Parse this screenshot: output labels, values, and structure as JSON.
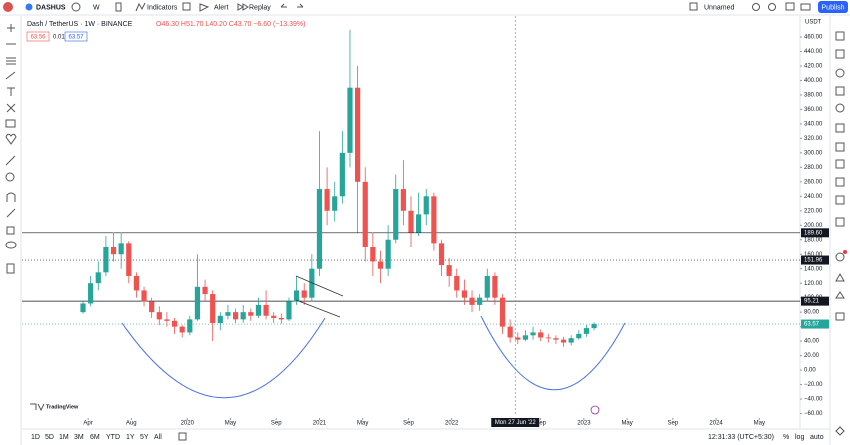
{
  "header": {
    "symbol": "DASHUS",
    "interval": "W",
    "buttons": [
      "Indicators",
      "Alert",
      "Replay"
    ],
    "layout_name": "Unnamed",
    "publish": "Publish"
  },
  "legend": {
    "title": "Dash / TetherUS · 1W · BINANCE",
    "ohlc": "O46.30 H51.70 L40.20 C43.70 −6.60 (−13.39%)",
    "bid": "63.56",
    "spread": "0.01",
    "ask": "63.57"
  },
  "chart_data": {
    "type": "candlestick",
    "currency": "USDT",
    "watermark": "TradingView",
    "up_color": "#26a69a",
    "down_color": "#ef5350",
    "xlim": [
      -13,
      293
    ],
    "ylim": [
      -80,
      489
    ],
    "xticks": [
      {
        "value": 13,
        "label": "Apr"
      },
      {
        "value": 30,
        "label": "Aug"
      },
      {
        "value": 52,
        "label": "2020"
      },
      {
        "value": 69,
        "label": "May"
      },
      {
        "value": 87,
        "label": "Sep"
      },
      {
        "value": 104,
        "label": "2021"
      },
      {
        "value": 121,
        "label": "May"
      },
      {
        "value": 139,
        "label": "Sep"
      },
      {
        "value": 156,
        "label": "2022"
      },
      {
        "value": 191,
        "label": "Sep"
      },
      {
        "value": 208,
        "label": "2023"
      },
      {
        "value": 225,
        "label": "May"
      },
      {
        "value": 243,
        "label": "Sep"
      },
      {
        "value": 260,
        "label": "2024"
      },
      {
        "value": 277,
        "label": "May"
      }
    ],
    "yticks": [
      {
        "value": -60,
        "label": "−60.00"
      },
      {
        "value": -40,
        "label": "−40.00"
      },
      {
        "value": -20,
        "label": "−20.00"
      },
      {
        "value": 0,
        "label": "0.00"
      },
      {
        "value": 20,
        "label": "20.00"
      },
      {
        "value": 40,
        "label": "40.00"
      },
      {
        "value": 60,
        "label": "60.00"
      },
      {
        "value": 80,
        "label": "80.00"
      },
      {
        "value": 100,
        "label": "100.00"
      },
      {
        "value": 120,
        "label": "120.00"
      },
      {
        "value": 140,
        "label": "140.00"
      },
      {
        "value": 160,
        "label": "160.00"
      },
      {
        "value": 180,
        "label": "180.00"
      },
      {
        "value": 200,
        "label": "200.00"
      },
      {
        "value": 220,
        "label": "220.00"
      },
      {
        "value": 240,
        "label": "240.00"
      },
      {
        "value": 260,
        "label": "260.00"
      },
      {
        "value": 280,
        "label": "280.00"
      },
      {
        "value": 300,
        "label": "300.00"
      },
      {
        "value": 320,
        "label": "320.00"
      },
      {
        "value": 340,
        "label": "340.00"
      },
      {
        "value": 360,
        "label": "360.00"
      },
      {
        "value": 380,
        "label": "380.00"
      },
      {
        "value": 400,
        "label": "400.00"
      },
      {
        "value": 420,
        "label": "420.00"
      },
      {
        "value": 440,
        "label": "440.00"
      },
      {
        "value": 460,
        "label": "460.00"
      }
    ],
    "price_lines": [
      {
        "value": 189.6,
        "label": "189.60",
        "color": "#131722"
      },
      {
        "value": 151.96,
        "label": "151.96",
        "color": "#131722"
      },
      {
        "value": 95.21,
        "label": "95.21",
        "color": "#131722"
      },
      {
        "value": 63.57,
        "label": "63.57",
        "color": "#26a69a"
      }
    ],
    "crosshair": {
      "value": 181,
      "label": "Mon 27 Jun '22"
    },
    "weeks": [
      11,
      14,
      17,
      20,
      23,
      26,
      29,
      32,
      35,
      38,
      41,
      44,
      47,
      50,
      53,
      56,
      59,
      62,
      65,
      68,
      71,
      74,
      77,
      80,
      83,
      86,
      89,
      92,
      95,
      98,
      101,
      104,
      107,
      110,
      113,
      116,
      119,
      122,
      125,
      128,
      131,
      134,
      137,
      140,
      143,
      146,
      149,
      152,
      155,
      158,
      161,
      164,
      167,
      170,
      173,
      176,
      179,
      182,
      185,
      188,
      191,
      194,
      197,
      200,
      203,
      206,
      209,
      212
    ],
    "ohlc": [
      [
        80,
        95,
        78,
        92
      ],
      [
        92,
        130,
        88,
        120
      ],
      [
        120,
        150,
        110,
        135
      ],
      [
        135,
        185,
        130,
        170
      ],
      [
        170,
        190,
        150,
        160
      ],
      [
        160,
        190,
        140,
        175
      ],
      [
        175,
        178,
        120,
        130
      ],
      [
        130,
        135,
        100,
        110
      ],
      [
        110,
        115,
        88,
        95
      ],
      [
        95,
        100,
        72,
        80
      ],
      [
        80,
        88,
        62,
        70
      ],
      [
        70,
        80,
        60,
        68
      ],
      [
        68,
        72,
        50,
        60
      ],
      [
        60,
        62,
        45,
        52
      ],
      [
        52,
        75,
        48,
        70
      ],
      [
        70,
        160,
        68,
        115
      ],
      [
        115,
        125,
        95,
        105
      ],
      [
        105,
        110,
        40,
        65
      ],
      [
        65,
        80,
        55,
        75
      ],
      [
        75,
        90,
        70,
        80
      ],
      [
        80,
        85,
        65,
        70
      ],
      [
        70,
        90,
        65,
        80
      ],
      [
        80,
        85,
        68,
        75
      ],
      [
        75,
        100,
        72,
        90
      ],
      [
        90,
        110,
        70,
        75
      ],
      [
        75,
        80,
        65,
        72
      ],
      [
        72,
        78,
        64,
        70
      ],
      [
        70,
        100,
        68,
        95
      ],
      [
        95,
        130,
        90,
        110
      ],
      [
        110,
        120,
        90,
        100
      ],
      [
        100,
        160,
        95,
        140
      ],
      [
        140,
        330,
        130,
        250
      ],
      [
        250,
        280,
        200,
        220
      ],
      [
        220,
        260,
        205,
        240
      ],
      [
        240,
        330,
        230,
        300
      ],
      [
        300,
        470,
        280,
        390
      ],
      [
        390,
        420,
        190,
        260
      ],
      [
        260,
        280,
        150,
        170
      ],
      [
        170,
        190,
        130,
        150
      ],
      [
        150,
        165,
        120,
        140
      ],
      [
        140,
        200,
        130,
        180
      ],
      [
        180,
        270,
        175,
        250
      ],
      [
        250,
        290,
        200,
        220
      ],
      [
        220,
        240,
        170,
        190
      ],
      [
        190,
        245,
        185,
        215
      ],
      [
        215,
        250,
        200,
        240
      ],
      [
        240,
        245,
        165,
        175
      ],
      [
        175,
        180,
        130,
        145
      ],
      [
        145,
        155,
        115,
        130
      ],
      [
        130,
        140,
        100,
        110
      ],
      [
        110,
        125,
        90,
        100
      ],
      [
        100,
        110,
        80,
        90
      ],
      [
        90,
        105,
        82,
        100
      ],
      [
        100,
        140,
        95,
        130
      ],
      [
        130,
        135,
        90,
        100
      ],
      [
        100,
        105,
        50,
        60
      ],
      [
        60,
        70,
        38,
        45
      ],
      [
        45,
        52,
        36,
        42
      ],
      [
        42,
        55,
        40,
        48
      ],
      [
        48,
        60,
        42,
        52
      ],
      [
        52,
        56,
        40,
        45
      ],
      [
        45,
        50,
        38,
        44
      ],
      [
        44,
        48,
        36,
        42
      ],
      [
        42,
        46,
        32,
        38
      ],
      [
        38,
        48,
        34,
        44
      ],
      [
        44,
        55,
        42,
        50
      ],
      [
        50,
        62,
        46,
        58
      ],
      [
        58,
        66,
        55,
        63.57
      ]
    ]
  },
  "bottom_bar": {
    "ranges": [
      "1D",
      "5D",
      "1M",
      "3M",
      "6M",
      "YTD",
      "1Y",
      "5Y",
      "All"
    ],
    "clock": "12:31:33 (UTC+5:30)",
    "percent": "%",
    "log": "log",
    "auto": "auto"
  }
}
